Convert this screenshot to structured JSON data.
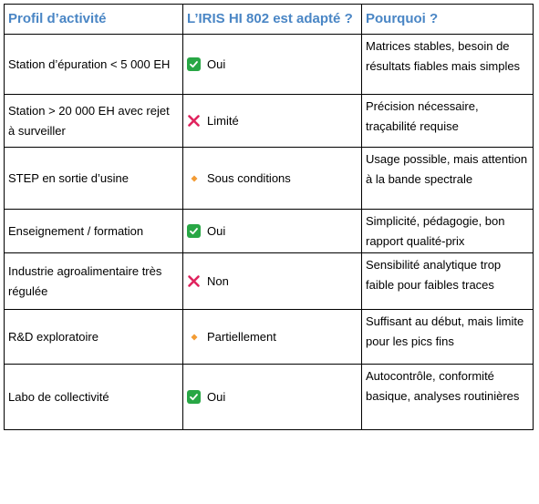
{
  "headers": [
    "Profil d’activité",
    "L’IRIS HI 802 est adapté ?",
    "Pourquoi ?"
  ],
  "colors": {
    "header_text": "#4a86c5",
    "check": "#28a745",
    "cross": "#e0245e",
    "diamond": "#f39c34"
  },
  "rows": [
    {
      "profile": "Station d’épuration < 5 000 EH",
      "icon": "check-icon",
      "status": "Oui",
      "reason": "Matrices stables, besoin de résultats fiables mais simples"
    },
    {
      "profile": "Station > 20 000 EH avec rejet à surveiller",
      "icon": "cross-icon",
      "status": "Limité",
      "reason": "Précision nécessaire, traçabilité requise"
    },
    {
      "profile": "STEP en sortie d’usine",
      "icon": "diamond-icon",
      "status": "Sous conditions",
      "reason": "Usage possible, mais attention à la bande spectrale"
    },
    {
      "profile": "Enseignement / formation",
      "icon": "check-icon",
      "status": "Oui",
      "reason": "Simplicité, pédagogie, bon rapport qualité-prix"
    },
    {
      "profile": "Industrie agroalimentaire très régulée",
      "icon": "cross-icon",
      "status": "Non",
      "reason": "Sensibilité analytique trop faible pour faibles traces"
    },
    {
      "profile": "R&D exploratoire",
      "icon": "diamond-icon",
      "status": "Partiellement",
      "reason": "Suffisant au début, mais limite pour les pics fins"
    },
    {
      "profile": "Labo de collectivité",
      "icon": "check-icon",
      "status": "Oui",
      "reason": "Autocontrôle, conformité basique, analyses routinières"
    }
  ]
}
